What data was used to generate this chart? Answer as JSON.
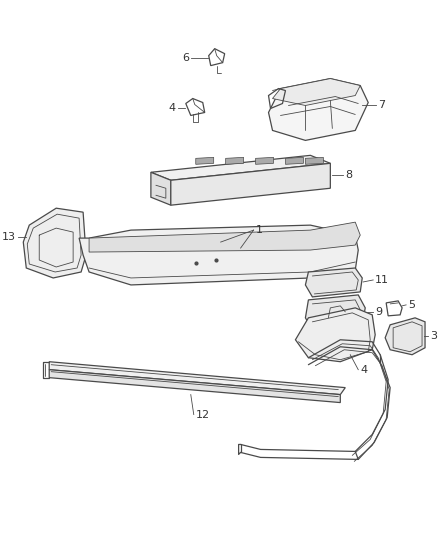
{
  "background_color": "#ffffff",
  "line_color": "#4a4a4a",
  "label_color": "#333333",
  "fig_width": 4.38,
  "fig_height": 5.33,
  "dpi": 100
}
